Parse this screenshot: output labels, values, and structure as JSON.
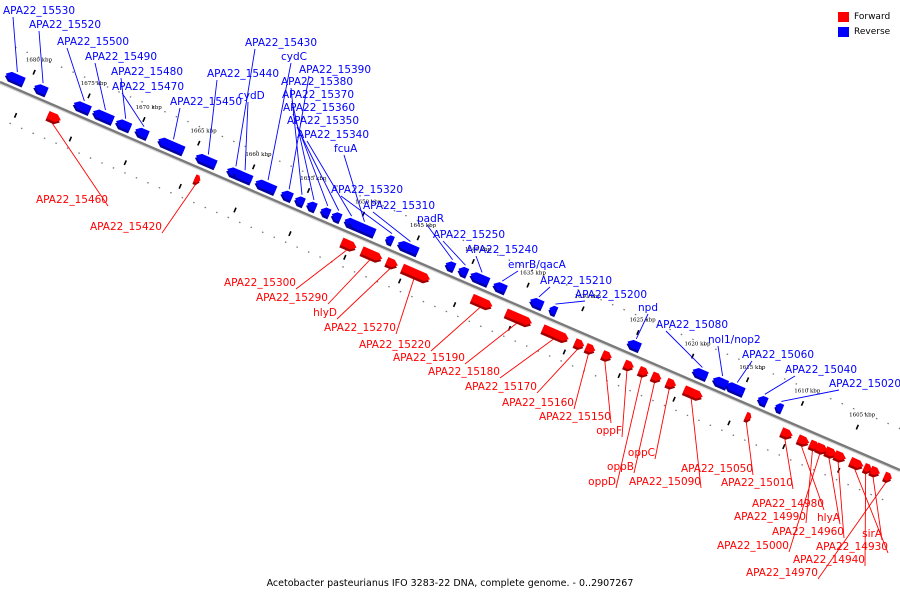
{
  "caption": "Acetobacter pasteurianus IFO 3283-22 DNA, complete genome. - 0..2907267",
  "legend": [
    {
      "label": "Forward",
      "color": "#ff0000"
    },
    {
      "label": "Reverse",
      "color": "#0000ff"
    }
  ],
  "colors": {
    "forward": "#ff0000",
    "reverse": "#0000ff",
    "backbone": "#7a7a7a"
  },
  "ticks": [
    {
      "kbp": 1680,
      "label": "1680 kbp"
    },
    {
      "kbp": 1675,
      "label": "1675 kbp"
    },
    {
      "kbp": 1670,
      "label": "1670 kbp"
    },
    {
      "kbp": 1665,
      "label": "1665 kbp"
    },
    {
      "kbp": 1660,
      "label": "1660 kbp"
    },
    {
      "kbp": 1655,
      "label": "1655 kbp"
    },
    {
      "kbp": 1650,
      "label": "1650 kbp"
    },
    {
      "kbp": 1645,
      "label": "1645 kbp"
    },
    {
      "kbp": 1640,
      "label": "1640 kbp"
    },
    {
      "kbp": 1635,
      "label": "1635 kbp"
    },
    {
      "kbp": 1630,
      "label": "1630 kbp"
    },
    {
      "kbp": 1625,
      "label": "1625 kbp"
    },
    {
      "kbp": 1620,
      "label": "1620 kbp"
    },
    {
      "kbp": 1615,
      "label": "1615 kbp"
    },
    {
      "kbp": 1610,
      "label": "1610 kbp"
    },
    {
      "kbp": 1605,
      "label": "1605 kbp"
    }
  ],
  "genes": [
    {
      "label": "APA22_15530",
      "strand": "reverse"
    },
    {
      "label": "APA22_15520",
      "strand": "reverse"
    },
    {
      "label": "APA22_15500",
      "strand": "reverse"
    },
    {
      "label": "APA22_15490",
      "strand": "reverse"
    },
    {
      "label": "APA22_15480",
      "strand": "reverse"
    },
    {
      "label": "APA22_15470",
      "strand": "reverse"
    },
    {
      "label": "APA22_15460",
      "strand": "forward"
    },
    {
      "label": "APA22_15450",
      "strand": "reverse"
    },
    {
      "label": "APA22_15440",
      "strand": "reverse"
    },
    {
      "label": "APA22_15430",
      "strand": "reverse"
    },
    {
      "label": "APA22_15420",
      "strand": "forward"
    },
    {
      "label": "cydD",
      "strand": "reverse"
    },
    {
      "label": "cydC",
      "strand": "reverse"
    },
    {
      "label": "APA22_15390",
      "strand": "reverse"
    },
    {
      "label": "APA22_15380",
      "strand": "reverse"
    },
    {
      "label": "APA22_15370",
      "strand": "reverse"
    },
    {
      "label": "APA22_15360",
      "strand": "reverse"
    },
    {
      "label": "APA22_15350",
      "strand": "reverse"
    },
    {
      "label": "APA22_15340",
      "strand": "reverse"
    },
    {
      "label": "fcuA",
      "strand": "reverse"
    },
    {
      "label": "APA22_15320",
      "strand": "reverse"
    },
    {
      "label": "APA22_15310",
      "strand": "reverse"
    },
    {
      "label": "APA22_15300",
      "strand": "forward"
    },
    {
      "label": "APA22_15290",
      "strand": "forward"
    },
    {
      "label": "hlyD",
      "strand": "forward"
    },
    {
      "label": "APA22_15270",
      "strand": "forward"
    },
    {
      "label": "padR",
      "strand": "reverse"
    },
    {
      "label": "APA22_15250",
      "strand": "reverse"
    },
    {
      "label": "APA22_15240",
      "strand": "reverse"
    },
    {
      "label": "emrB/qacA",
      "strand": "reverse"
    },
    {
      "label": "APA22_15220",
      "strand": "forward"
    },
    {
      "label": "APA22_15210",
      "strand": "reverse"
    },
    {
      "label": "APA22_15200",
      "strand": "reverse"
    },
    {
      "label": "APA22_15190",
      "strand": "forward"
    },
    {
      "label": "APA22_15180",
      "strand": "forward"
    },
    {
      "label": "APA22_15170",
      "strand": "forward"
    },
    {
      "label": "APA22_15160",
      "strand": "forward"
    },
    {
      "label": "APA22_15150",
      "strand": "forward"
    },
    {
      "label": "oppF",
      "strand": "forward"
    },
    {
      "label": "oppD",
      "strand": "forward"
    },
    {
      "label": "oppB",
      "strand": "forward"
    },
    {
      "label": "oppC",
      "strand": "forward"
    },
    {
      "label": "npd",
      "strand": "reverse"
    },
    {
      "label": "APA22_15090",
      "strand": "forward"
    },
    {
      "label": "APA22_15080",
      "strand": "reverse"
    },
    {
      "label": "nol1/nop2",
      "strand": "reverse"
    },
    {
      "label": "APA22_15060",
      "strand": "reverse"
    },
    {
      "label": "APA22_15050",
      "strand": "forward"
    },
    {
      "label": "APA22_15040",
      "strand": "reverse"
    },
    {
      "label": "APA22_15020",
      "strand": "reverse"
    },
    {
      "label": "APA22_15010",
      "strand": "forward"
    },
    {
      "label": "APA22_14980",
      "strand": "forward"
    },
    {
      "label": "APA22_14990",
      "strand": "forward"
    },
    {
      "label": "hlyA",
      "strand": "forward"
    },
    {
      "label": "APA22_14960",
      "strand": "forward"
    },
    {
      "label": "APA22_15000",
      "strand": "forward"
    },
    {
      "label": "sirA",
      "strand": "forward"
    },
    {
      "label": "APA22_14930",
      "strand": "forward"
    },
    {
      "label": "APA22_14940",
      "strand": "forward"
    },
    {
      "label": "APA22_14970",
      "strand": "forward"
    }
  ]
}
